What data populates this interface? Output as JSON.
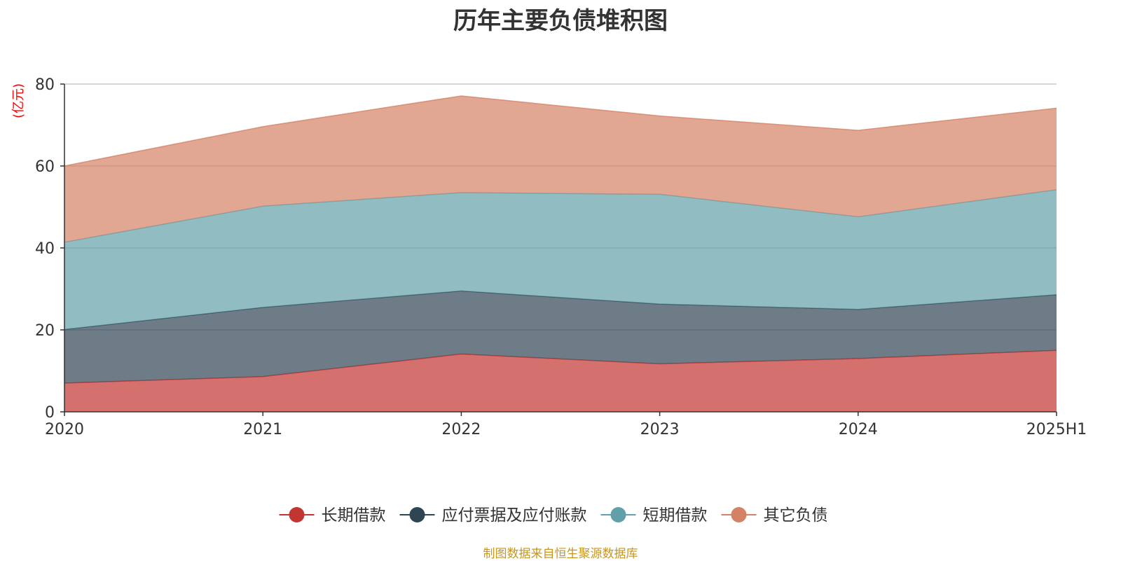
{
  "chart_data": {
    "type": "area",
    "stacked": true,
    "title": "历年主要负债堆积图",
    "ylabel": "亿元",
    "ylim": [
      0,
      80
    ],
    "y_ticks": [
      0,
      20,
      40,
      60,
      80
    ],
    "categories": [
      "2020",
      "2021",
      "2022",
      "2023",
      "2024",
      "2025H1"
    ],
    "grid": true,
    "legend_position": "bottom",
    "series": [
      {
        "name": "长期借款",
        "color": "#c23531",
        "values": [
          7.0,
          8.6,
          14.1,
          11.7,
          13.0,
          15.0
        ]
      },
      {
        "name": "应付票据及应付账款",
        "color": "#2f4554",
        "values": [
          13.1,
          16.9,
          15.4,
          14.6,
          12.0,
          13.6
        ]
      },
      {
        "name": "短期借款",
        "color": "#61a0a8",
        "values": [
          21.3,
          24.7,
          24.0,
          26.8,
          22.6,
          25.6
        ]
      },
      {
        "name": "其它负债",
        "color": "#d48265",
        "values": [
          18.6,
          19.4,
          23.6,
          19.1,
          21.1,
          19.9
        ]
      }
    ]
  },
  "source_note": "制图数据来自恒生聚源数据库"
}
